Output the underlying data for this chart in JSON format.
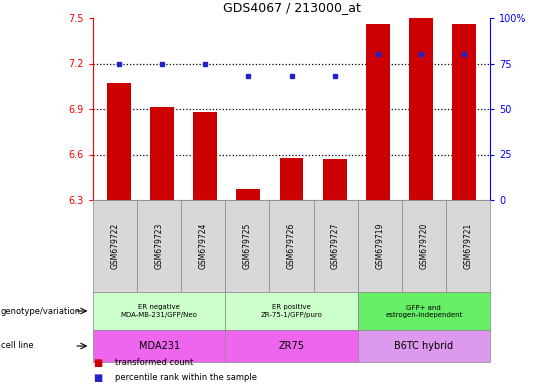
{
  "title": "GDS4067 / 213000_at",
  "samples": [
    "GSM679722",
    "GSM679723",
    "GSM679724",
    "GSM679725",
    "GSM679726",
    "GSM679727",
    "GSM679719",
    "GSM679720",
    "GSM679721"
  ],
  "bar_values": [
    7.07,
    6.91,
    6.88,
    6.37,
    6.58,
    6.57,
    7.46,
    7.5,
    7.46
  ],
  "dot_values": [
    75,
    75,
    75,
    68,
    68,
    68,
    80,
    80,
    80
  ],
  "ylim_left": [
    6.3,
    7.5
  ],
  "ylim_right": [
    0,
    100
  ],
  "yticks_left": [
    6.3,
    6.6,
    6.9,
    7.2,
    7.5
  ],
  "yticks_right": [
    0,
    25,
    50,
    75,
    100
  ],
  "ytick_labels_right": [
    "0",
    "25",
    "50",
    "75",
    "100%"
  ],
  "bar_color": "#CC0000",
  "dot_color": "#2222CC",
  "groups": [
    {
      "label": "ER negative\nMDA-MB-231/GFP/Neo",
      "start": 0,
      "end": 3,
      "color": "#ccffcc"
    },
    {
      "label": "ER positive\nZR-75-1/GFP/puro",
      "start": 3,
      "end": 6,
      "color": "#ccffcc"
    },
    {
      "label": "GFP+ and\nestrogen-independent",
      "start": 6,
      "end": 9,
      "color": "#66ee66"
    }
  ],
  "cell_lines": [
    {
      "label": "MDA231",
      "start": 0,
      "end": 3,
      "color": "#ee66ee"
    },
    {
      "label": "ZR75",
      "start": 3,
      "end": 6,
      "color": "#ee66ee"
    },
    {
      "label": "B6TC hybrid",
      "start": 6,
      "end": 9,
      "color": "#dd99ee"
    }
  ],
  "genotype_label": "genotype/variation",
  "cell_line_label": "cell line",
  "legend_bar": "transformed count",
  "legend_dot": "percentile rank within the sample",
  "dotted_lines": [
    6.6,
    6.9,
    7.2
  ],
  "group_boundaries": [
    3,
    6
  ]
}
